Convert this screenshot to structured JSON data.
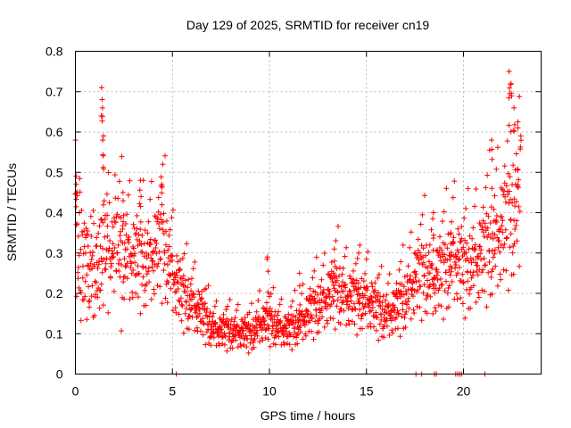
{
  "chart_data": {
    "type": "scatter",
    "title": "Day 129 of 2025, SRMTID for receiver cn19",
    "xlabel": "GPS time / hours",
    "ylabel": "SRMTID / TECUs",
    "xlim": [
      0,
      24
    ],
    "ylim": [
      0,
      0.8
    ],
    "x_ticks": [
      0,
      5,
      10,
      15,
      20
    ],
    "x_tick_labels": [
      "0",
      "5",
      "10",
      "15",
      "20"
    ],
    "y_ticks": [
      0,
      0.1,
      0.2,
      0.3,
      0.4,
      0.5,
      0.6,
      0.7,
      0.8
    ],
    "y_tick_labels": [
      "0",
      "0.1",
      "0.2",
      "0.3",
      "0.4",
      "0.5",
      "0.6",
      "0.7",
      "0.8"
    ],
    "grid": true,
    "marker": "+",
    "color": "#ff0000",
    "series": [
      {
        "name": "SRMTID",
        "trend": [
          [
            0.0,
            0.36
          ],
          [
            0.5,
            0.28
          ],
          [
            1.0,
            0.24
          ],
          [
            1.5,
            0.3
          ],
          [
            2.0,
            0.3
          ],
          [
            2.5,
            0.29
          ],
          [
            3.0,
            0.27
          ],
          [
            3.5,
            0.26
          ],
          [
            4.0,
            0.28
          ],
          [
            4.5,
            0.31
          ],
          [
            5.0,
            0.24
          ],
          [
            5.5,
            0.18
          ],
          [
            6.0,
            0.17
          ],
          [
            6.5,
            0.14
          ],
          [
            7.0,
            0.11
          ],
          [
            7.5,
            0.1
          ],
          [
            8.0,
            0.1
          ],
          [
            8.5,
            0.1
          ],
          [
            9.0,
            0.09
          ],
          [
            9.5,
            0.12
          ],
          [
            10.0,
            0.12
          ],
          [
            10.5,
            0.11
          ],
          [
            11.0,
            0.1
          ],
          [
            11.5,
            0.12
          ],
          [
            12.0,
            0.14
          ],
          [
            12.5,
            0.16
          ],
          [
            13.0,
            0.18
          ],
          [
            13.5,
            0.2
          ],
          [
            14.0,
            0.18
          ],
          [
            14.5,
            0.17
          ],
          [
            15.0,
            0.18
          ],
          [
            15.5,
            0.15
          ],
          [
            16.0,
            0.14
          ],
          [
            16.5,
            0.15
          ],
          [
            17.0,
            0.18
          ],
          [
            17.5,
            0.22
          ],
          [
            18.0,
            0.24
          ],
          [
            18.5,
            0.22
          ],
          [
            19.0,
            0.24
          ],
          [
            19.5,
            0.28
          ],
          [
            20.0,
            0.24
          ],
          [
            20.5,
            0.26
          ],
          [
            21.0,
            0.28
          ],
          [
            21.5,
            0.31
          ],
          [
            22.0,
            0.34
          ],
          [
            22.5,
            0.38
          ],
          [
            22.9,
            0.4
          ]
        ],
        "peaks": [
          [
            0.05,
            0.47
          ],
          [
            1.35,
            0.71
          ],
          [
            1.4,
            0.66
          ],
          [
            1.45,
            0.59
          ],
          [
            2.45,
            0.45
          ],
          [
            3.35,
            0.48
          ],
          [
            4.45,
            0.47
          ],
          [
            9.9,
            0.29
          ],
          [
            11.55,
            0.25
          ],
          [
            13.35,
            0.28
          ],
          [
            14.6,
            0.3
          ],
          [
            18.45,
            0.4
          ],
          [
            19.35,
            0.35
          ],
          [
            21.45,
            0.58
          ],
          [
            22.35,
            0.75
          ],
          [
            22.45,
            0.72
          ],
          [
            22.6,
            0.66
          ],
          [
            22.8,
            0.61
          ],
          [
            22.95,
            0.59
          ]
        ],
        "zero_values": [
          5.2,
          17.55,
          17.85,
          18.5,
          18.6,
          19.6,
          19.7,
          19.8,
          19.9,
          21.1
        ]
      }
    ]
  }
}
